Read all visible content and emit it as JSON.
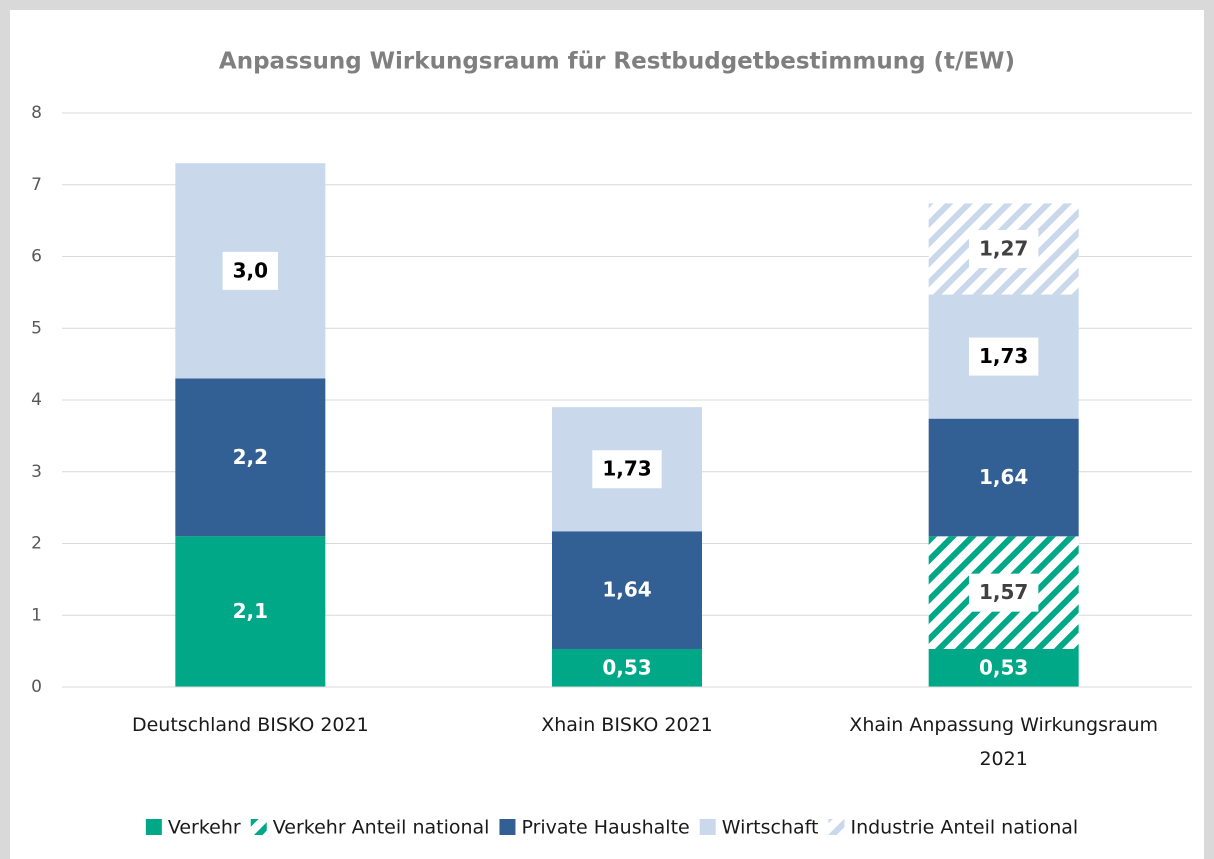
{
  "chart_data": {
    "type": "stacked_bar",
    "title": "Anpassung Wirkungsraum für Restbudgetbestimmung (t/EW)",
    "categories": [
      "Deutschland BISKO 2021",
      "Xhain BISKO 2021",
      "Xhain Anpassung Wirkungsraum 2021"
    ],
    "series": [
      {
        "name": "Verkehr",
        "color": "#00a887",
        "hatch": false,
        "values": [
          2.1,
          0.53,
          0.53
        ],
        "value_labels": [
          "2,1",
          "0,53",
          "0,53"
        ]
      },
      {
        "name": "Verkehr Anteil national",
        "color": "#00a887",
        "hatch": true,
        "values": [
          null,
          null,
          1.57
        ],
        "value_labels": [
          null,
          null,
          "1,57"
        ]
      },
      {
        "name": "Private Haushalte",
        "color": "#325f94",
        "hatch": false,
        "values": [
          2.2,
          1.64,
          1.64
        ],
        "value_labels": [
          "2,2",
          "1,64",
          "1,64"
        ]
      },
      {
        "name": "Wirtschaft",
        "color": "#cad8ec",
        "hatch": false,
        "values": [
          3.0,
          1.73,
          1.73
        ],
        "value_labels": [
          "3,0",
          "1,73",
          "1,73"
        ]
      },
      {
        "name": "Industrie Anteil national",
        "color": "#cad8ec",
        "hatch": true,
        "values": [
          null,
          null,
          1.27
        ],
        "value_labels": [
          null,
          null,
          "1,27"
        ]
      }
    ],
    "ylim": [
      0,
      8
    ],
    "yticks": [
      0,
      1,
      2,
      3,
      4,
      5,
      6,
      7,
      8
    ],
    "grid": true,
    "legend": "bottom"
  }
}
